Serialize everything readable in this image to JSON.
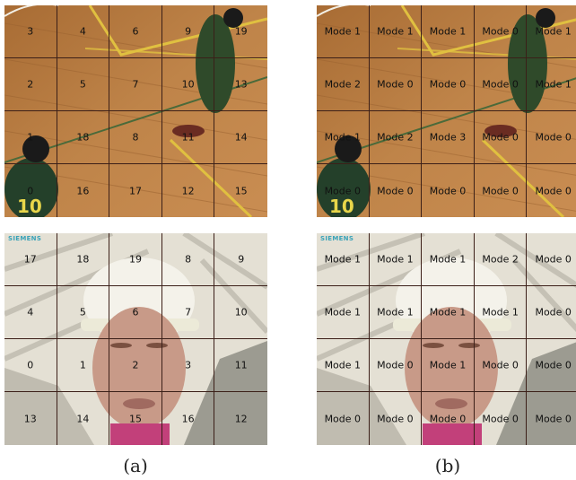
{
  "panels": {
    "a": {
      "top_grid": [
        [
          "3",
          "4",
          "6",
          "9",
          "19"
        ],
        [
          "2",
          "5",
          "7",
          "10",
          "13"
        ],
        [
          "1",
          "18",
          "8",
          "11",
          "14"
        ],
        [
          "0",
          "16",
          "17",
          "12",
          "15"
        ]
      ],
      "bottom_grid": [
        [
          "17",
          "18",
          "19",
          "8",
          "9"
        ],
        [
          "4",
          "5",
          "6",
          "7",
          "10"
        ],
        [
          "0",
          "1",
          "2",
          "3",
          "11"
        ],
        [
          "13",
          "14",
          "15",
          "16",
          "12"
        ]
      ]
    },
    "b": {
      "top_grid": [
        [
          "Mode 1",
          "Mode 1",
          "Mode 1",
          "Mode 0",
          "Mode 1"
        ],
        [
          "Mode 2",
          "Mode 0",
          "Mode 0",
          "Mode 0",
          "Mode 1"
        ],
        [
          "Mode 1",
          "Mode 2",
          "Mode 3",
          "Mode 0",
          "Mode 0"
        ],
        [
          "Mode 0",
          "Mode 0",
          "Mode 0",
          "Mode 0",
          "Mode 0"
        ]
      ],
      "bottom_grid": [
        [
          "Mode 1",
          "Mode 1",
          "Mode 1",
          "Mode 2",
          "Mode 0"
        ],
        [
          "Mode 1",
          "Mode 1",
          "Mode 1",
          "Mode 1",
          "Mode 0"
        ],
        [
          "Mode 1",
          "Mode 0",
          "Mode 1",
          "Mode 0",
          "Mode 0"
        ],
        [
          "Mode 0",
          "Mode 0",
          "Mode 0",
          "Mode 0",
          "Mode 0"
        ]
      ]
    }
  },
  "captions": {
    "a": "(a)",
    "b": "(b)"
  },
  "logo_text": "SIEMENS",
  "jersey_text": "10",
  "colors": {
    "court": "#b47a40",
    "court_line": "#e0c040",
    "wall": "#e4e0d4",
    "helmet": "#f4f2ea",
    "grid_line": "#3b1f18"
  }
}
